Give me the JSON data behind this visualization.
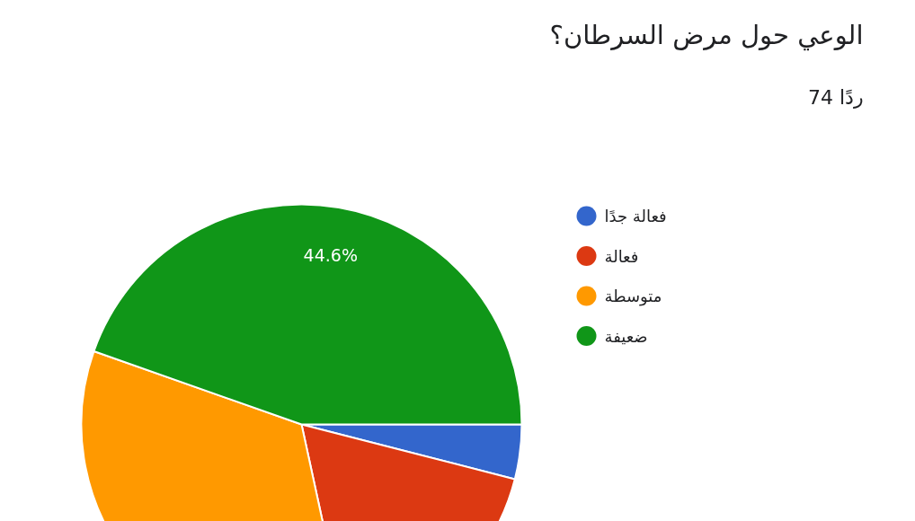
{
  "chart_data": {
    "type": "pie",
    "title": "الوعي حول مرض السرطان؟",
    "subtitle": "74 ردًا",
    "categories": [
      "فعالة جدًا",
      "فعالة",
      "متوسطة",
      "ضعيفة"
    ],
    "values": [
      4.0,
      17.6,
      33.8,
      44.6
    ],
    "colors": [
      "#3366cc",
      "#dc3912",
      "#ff9900",
      "#109618"
    ],
    "value_labels": [
      null,
      null,
      null,
      "44.6%"
    ],
    "legend": "right"
  }
}
